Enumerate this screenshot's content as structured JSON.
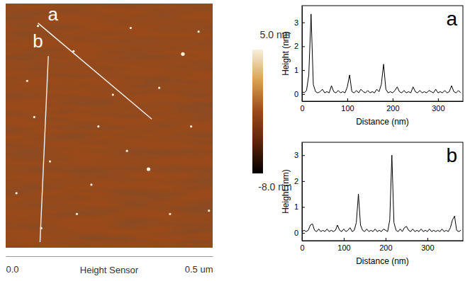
{
  "chart_data": [
    {
      "type": "image",
      "xlim": [
        0,
        0.5
      ],
      "xticks": [
        {
          "value": 0,
          "label": "0.0"
        },
        {
          "value": 0.5,
          "label": "0.5 um"
        }
      ],
      "x_label": "Height Sensor",
      "ylim": [
        0,
        0.6
      ],
      "tick_labels": "x",
      "colorbar": {
        "range": [
          -8,
          5
        ],
        "ticks": [
          {
            "value": 5,
            "label": "5.0 nm"
          },
          {
            "value": -8,
            "label": "-8.0 nm"
          }
        ],
        "colors": [
          "#000000",
          "#5e230a",
          "#9a4a1a",
          "#d9a050",
          "#f7f0dc"
        ]
      },
      "particles": {
        "x": [
          0.428,
          0.345,
          0.107,
          0.078,
          0.164,
          0.224,
          0.069,
          0.293,
          0.397,
          0.491,
          0.086,
          0.207,
          0.302,
          0.371,
          0.448,
          0.172,
          0.259,
          0.052,
          0.466,
          0.026
        ],
        "y": [
          0.124,
          0.407,
          0.388,
          0.055,
          0.117,
          0.302,
          0.279,
          0.362,
          0.517,
          0.509,
          0.552,
          0.445,
          0.06,
          0.207,
          0.302,
          0.517,
          0.224,
          0.19,
          0.069,
          0.466
        ]
      },
      "lines": [
        {
          "label": "a",
          "x": [
            0.078,
            0.353
          ],
          "y": [
            0.048,
            0.284
          ]
        },
        {
          "label": "b",
          "x": [
            0.103,
            0.083
          ],
          "y": [
            0.129,
            0.586
          ]
        }
      ]
    },
    {
      "type": "line",
      "title": "a",
      "x_label": "Distance (nm)",
      "y_label": "Height (nm)",
      "color": "#000000",
      "xlim": [
        0,
        355
      ],
      "xticks": [
        0,
        100,
        200,
        300
      ],
      "ylim": [
        -0.3,
        3.7
      ],
      "yticks": [
        0,
        1,
        2,
        3
      ],
      "x": [
        0,
        5,
        10,
        15,
        20,
        25,
        30,
        35,
        40,
        45,
        50,
        55,
        60,
        65,
        70,
        75,
        80,
        85,
        90,
        95,
        100,
        105,
        110,
        115,
        120,
        125,
        130,
        135,
        140,
        145,
        150,
        155,
        160,
        165,
        170,
        175,
        180,
        185,
        190,
        195,
        200,
        205,
        210,
        215,
        220,
        225,
        230,
        235,
        240,
        245,
        250,
        255,
        260,
        265,
        270,
        275,
        280,
        285,
        290,
        295,
        300,
        305,
        310,
        315,
        320,
        325,
        330,
        335,
        340,
        345,
        350
      ],
      "values": [
        0.1,
        0.05,
        0.15,
        0.8,
        3.35,
        0.4,
        0.1,
        0.05,
        0.1,
        0.2,
        0.05,
        0.1,
        0.05,
        0.35,
        0.1,
        0.05,
        0.15,
        0.05,
        0.1,
        0.05,
        0.3,
        0.8,
        0.1,
        0.05,
        0.15,
        0.05,
        0.2,
        0.1,
        0.05,
        0.15,
        0.05,
        0.1,
        0.05,
        0.2,
        0.1,
        0.4,
        1.25,
        0.2,
        0.05,
        0.1,
        0.05,
        0.15,
        0.3,
        0.1,
        0.05,
        0.15,
        0.05,
        0.1,
        0.05,
        0.3,
        0.1,
        0.05,
        0.15,
        0.05,
        0.1,
        0.05,
        0.15,
        0.1,
        0.05,
        0.2,
        0.05,
        0.1,
        0.05,
        0.15,
        0.05,
        0.1,
        0.35,
        0.1,
        0.05,
        0.15,
        0.05
      ]
    },
    {
      "type": "line",
      "title": "b",
      "x_label": "Distance (nm)",
      "y_label": "Height (nm)",
      "color": "#000000",
      "xlim": [
        0,
        385
      ],
      "xticks": [
        0,
        100,
        200,
        300
      ],
      "ylim": [
        -0.3,
        3.5
      ],
      "yticks": [
        0,
        1,
        2,
        3
      ],
      "x": [
        0,
        5,
        10,
        15,
        20,
        25,
        30,
        35,
        40,
        45,
        50,
        55,
        60,
        65,
        70,
        75,
        80,
        85,
        90,
        95,
        100,
        105,
        110,
        115,
        120,
        125,
        130,
        135,
        140,
        145,
        150,
        155,
        160,
        165,
        170,
        175,
        180,
        185,
        190,
        195,
        200,
        205,
        210,
        215,
        220,
        225,
        230,
        235,
        240,
        245,
        250,
        255,
        260,
        265,
        270,
        275,
        280,
        285,
        290,
        295,
        300,
        305,
        310,
        315,
        320,
        325,
        330,
        335,
        340,
        345,
        350,
        355,
        360,
        365,
        370,
        375,
        380
      ],
      "values": [
        0.05,
        0.1,
        0.05,
        0.1,
        0.3,
        0.35,
        0.1,
        0.05,
        0.15,
        0.05,
        0.1,
        0.05,
        0.15,
        0.05,
        0.1,
        0.05,
        0.1,
        0.3,
        0.1,
        0.05,
        0.15,
        0.05,
        0.1,
        0.2,
        0.05,
        0.1,
        0.4,
        1.5,
        0.3,
        0.1,
        0.05,
        0.15,
        0.05,
        0.1,
        0.05,
        0.15,
        0.05,
        0.1,
        0.05,
        0.15,
        0.1,
        0.05,
        0.5,
        3.0,
        0.4,
        0.1,
        0.05,
        0.15,
        0.05,
        0.2,
        0.25,
        0.1,
        0.05,
        0.15,
        0.05,
        0.1,
        0.05,
        0.15,
        0.05,
        0.1,
        0.05,
        0.15,
        0.05,
        0.1,
        0.05,
        0.1,
        0.05,
        0.15,
        0.05,
        0.1,
        0.05,
        0.2,
        0.5,
        0.65,
        0.1,
        0.05,
        0.1
      ]
    }
  ]
}
